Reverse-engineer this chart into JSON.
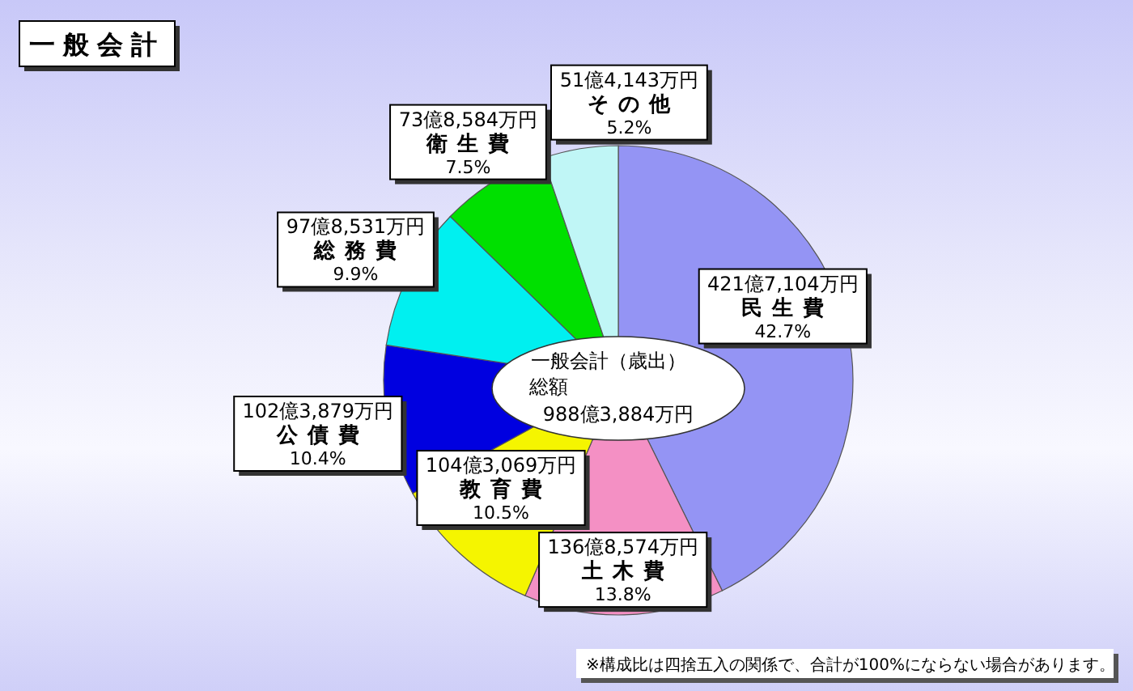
{
  "chart_data": {
    "type": "pie",
    "title": "一般会計",
    "categories": [
      "民生費",
      "土木費",
      "教育費",
      "公債費",
      "総務費",
      "衛生費",
      "その他"
    ],
    "values": [
      42.7,
      13.8,
      10.5,
      10.4,
      9.9,
      7.5,
      5.2
    ],
    "colors": [
      "#9494f4",
      "#f490c4",
      "#f5f500",
      "#0000e0",
      "#00f0f0",
      "#00e000",
      "#c0f6f6"
    ],
    "value_labels": [
      "42.7%",
      "13.8%",
      "10.5%",
      "10.4%",
      "9.9%",
      "7.5%",
      "5.2%"
    ],
    "annotations": [
      {
        "text": "421億7,104万円",
        "x": "民生費"
      },
      {
        "text": "136億8,574万円",
        "x": "土木費"
      },
      {
        "text": "104億3,069万円",
        "x": "教育費"
      },
      {
        "text": "102億3,879万円",
        "x": "公債費"
      },
      {
        "text": "97億8,531万円",
        "x": "総務費"
      },
      {
        "text": "73億8,584万円",
        "x": "衛生費"
      },
      {
        "text": "51億4,143万円",
        "x": "その他"
      },
      "一般会計（歳出）",
      "総額",
      "988億3,884万円",
      "※構成比は四捨五入の関係で、合計が100%にならない場合があります。"
    ]
  }
}
